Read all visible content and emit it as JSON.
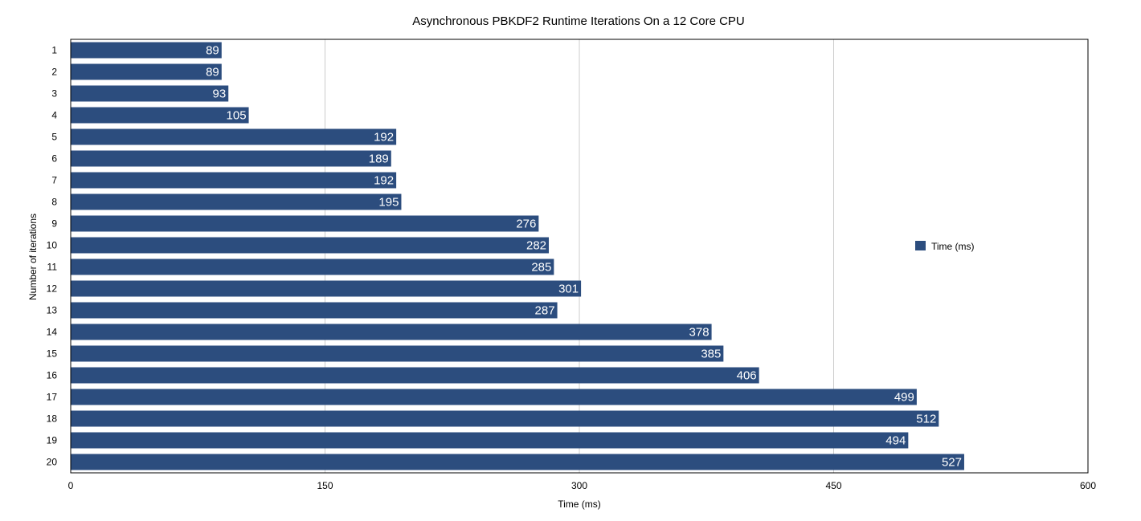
{
  "chart_data": {
    "type": "bar",
    "orientation": "horizontal",
    "title": "Asynchronous PBKDF2 Runtime Iterations On a 12 Core CPU",
    "xlabel": "Time (ms)",
    "ylabel": "Number of iterations",
    "xlim": [
      0,
      600
    ],
    "xticks": [
      0,
      150,
      300,
      450,
      600
    ],
    "grid": "vertical",
    "legend_position": "right",
    "bar_color": "#2c4d7e",
    "categories": [
      "1",
      "2",
      "3",
      "4",
      "5",
      "6",
      "7",
      "8",
      "9",
      "10",
      "11",
      "12",
      "13",
      "14",
      "15",
      "16",
      "17",
      "18",
      "19",
      "20"
    ],
    "series": [
      {
        "name": "Time (ms)",
        "values": [
          89,
          89,
          93,
          105,
          192,
          189,
          192,
          195,
          276,
          282,
          285,
          301,
          287,
          378,
          385,
          406,
          499,
          512,
          494,
          527
        ]
      }
    ]
  }
}
